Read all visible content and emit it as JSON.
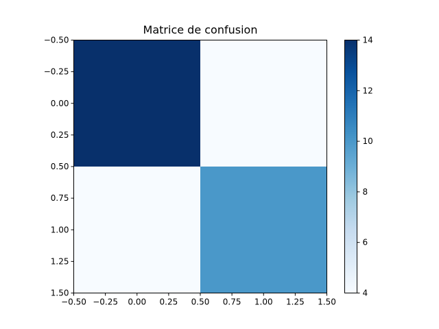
{
  "chart_data": {
    "type": "heatmap",
    "title": "Matrice de confusion",
    "xlabel": "",
    "ylabel": "",
    "matrix": [
      [
        14,
        4
      ],
      [
        4,
        10
      ]
    ],
    "xlim": [
      -0.5,
      1.5
    ],
    "ylim": [
      1.5,
      -0.5
    ],
    "x_ticks": [
      "−0.50",
      "−0.25",
      "0.00",
      "0.25",
      "0.50",
      "0.75",
      "1.00",
      "1.25",
      "1.50"
    ],
    "y_ticks": [
      "−0.50",
      "−0.25",
      "0.00",
      "0.25",
      "0.50",
      "0.75",
      "1.00",
      "1.25",
      "1.50"
    ],
    "colorbar": {
      "range": [
        4,
        14
      ],
      "ticks": [
        "4",
        "6",
        "8",
        "10",
        "12",
        "14"
      ],
      "colormap": "Blues",
      "low_color": "#f7fbff",
      "high_color": "#08306b"
    },
    "grid": false,
    "legend": "none"
  }
}
